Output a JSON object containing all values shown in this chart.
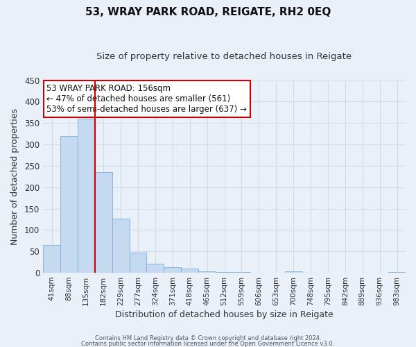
{
  "title": "53, WRAY PARK ROAD, REIGATE, RH2 0EQ",
  "subtitle": "Size of property relative to detached houses in Reigate",
  "xlabel": "Distribution of detached houses by size in Reigate",
  "ylabel": "Number of detached properties",
  "bar_heights": [
    65,
    320,
    360,
    235,
    127,
    47,
    22,
    13,
    10,
    4,
    2,
    1,
    0,
    0,
    3,
    0,
    0,
    0,
    0,
    0,
    2
  ],
  "bar_labels": [
    "41sqm",
    "88sqm",
    "135sqm",
    "182sqm",
    "229sqm",
    "277sqm",
    "324sqm",
    "371sqm",
    "418sqm",
    "465sqm",
    "512sqm",
    "559sqm",
    "606sqm",
    "653sqm",
    "700sqm",
    "748sqm",
    "795sqm",
    "842sqm",
    "889sqm",
    "936sqm",
    "983sqm"
  ],
  "bar_color": "#c5d9f0",
  "bar_edge_color": "#7bafd4",
  "background_color": "#eaf0f8",
  "grid_color": "#d0dce8",
  "vline_color": "#cc0000",
  "annotation_title": "53 WRAY PARK ROAD: 156sqm",
  "annotation_line1": "← 47% of detached houses are smaller (561)",
  "annotation_line2": "53% of semi-detached houses are larger (637) →",
  "annotation_box_color": "#ffffff",
  "annotation_box_edge": "#cc0000",
  "footer1": "Contains HM Land Registry data © Crown copyright and database right 2024.",
  "footer2": "Contains public sector information licensed under the Open Government Licence v3.0.",
  "ylim_max": 450,
  "yticks": [
    0,
    50,
    100,
    150,
    200,
    250,
    300,
    350,
    400,
    450
  ]
}
